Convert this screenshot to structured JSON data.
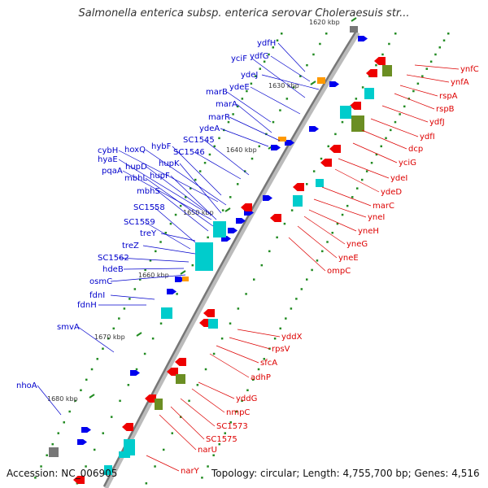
{
  "header": {
    "title": "Salmonella enterica subsp. enterica serovar Choleraesuis str..."
  },
  "footer": {
    "accession": "Accession: NC_006905",
    "summary": "Topology: circular; Length: 4,755,700 bp; Genes: 4,516"
  },
  "colors": {
    "forward_label": "#0000cc",
    "reverse_label": "#dd0000",
    "backbone": "#777777",
    "tick": "#228b22",
    "cds_forward": "#0000ee",
    "cds_reverse": "#ee0000",
    "rna": "#00cccc"
  },
  "kbp_ticks": [
    {
      "label": "1620 kbp"
    },
    {
      "label": "1630 kbp"
    },
    {
      "label": "1640 kbp"
    },
    {
      "label": "1650 kbp"
    },
    {
      "label": "1660 kbp"
    },
    {
      "label": "1670 kbp"
    },
    {
      "label": "1680 kbp"
    }
  ],
  "forward_genes": [
    {
      "name": "ydfH"
    },
    {
      "name": "ydfG"
    },
    {
      "name": "yciF"
    },
    {
      "name": "ydeJ"
    },
    {
      "name": "ydeE"
    },
    {
      "name": "marB"
    },
    {
      "name": "marA"
    },
    {
      "name": "marR"
    },
    {
      "name": "ydeA"
    },
    {
      "name": "SC1545"
    },
    {
      "name": "SC1546"
    },
    {
      "name": "hybF"
    },
    {
      "name": "hyaE"
    },
    {
      "name": "cybH"
    },
    {
      "name": "hoxQ"
    },
    {
      "name": "hupK"
    },
    {
      "name": "pqaA"
    },
    {
      "name": "hupD"
    },
    {
      "name": "mbhL"
    },
    {
      "name": "hupF"
    },
    {
      "name": "mbhS"
    },
    {
      "name": "SC1558"
    },
    {
      "name": "SC1559"
    },
    {
      "name": "treY"
    },
    {
      "name": "treZ"
    },
    {
      "name": "SC1562"
    },
    {
      "name": "hdeB"
    },
    {
      "name": "osmC"
    },
    {
      "name": "fdnI"
    },
    {
      "name": "fdnH"
    },
    {
      "name": "smvA"
    },
    {
      "name": "nhoA"
    }
  ],
  "reverse_genes": [
    {
      "name": "ynfC"
    },
    {
      "name": "ynfA"
    },
    {
      "name": "rspA"
    },
    {
      "name": "rspB"
    },
    {
      "name": "ydfJ"
    },
    {
      "name": "ydfI"
    },
    {
      "name": "dcp"
    },
    {
      "name": "yciG"
    },
    {
      "name": "ydeI"
    },
    {
      "name": "ydeD"
    },
    {
      "name": "marC"
    },
    {
      "name": "yneI"
    },
    {
      "name": "yneH"
    },
    {
      "name": "yneG"
    },
    {
      "name": "yneE"
    },
    {
      "name": "ompC"
    },
    {
      "name": "yddX"
    },
    {
      "name": "rpsV"
    },
    {
      "name": "sfcA"
    },
    {
      "name": "adhP"
    },
    {
      "name": "yddG"
    },
    {
      "name": "nmpC"
    },
    {
      "name": "SC1573"
    },
    {
      "name": "SC1575"
    },
    {
      "name": "narU"
    },
    {
      "name": "narY"
    }
  ]
}
